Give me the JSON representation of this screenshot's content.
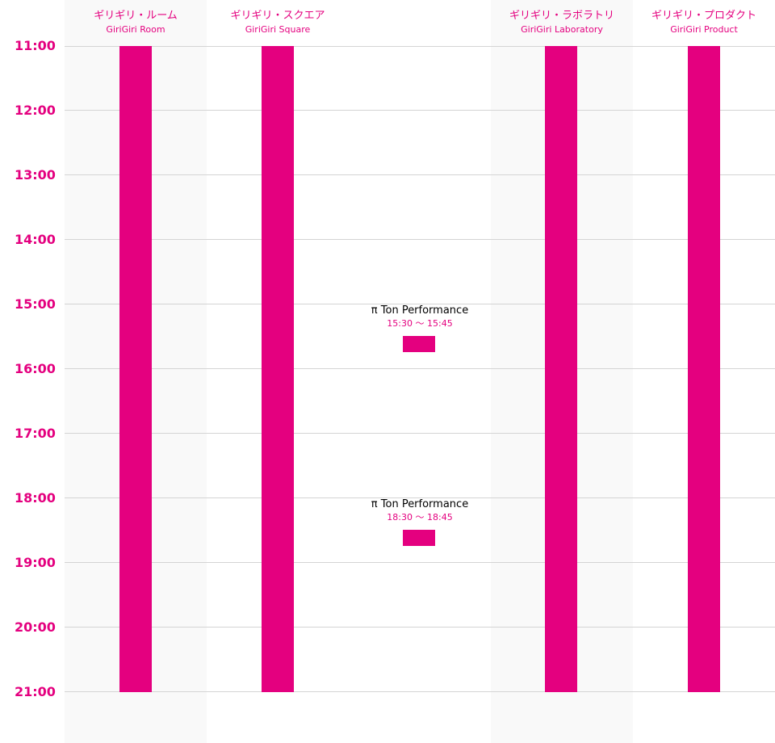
{
  "rooms": [
    {
      "jp": "ギリギリ・ルーム",
      "en": "GiriGiri Room"
    },
    {
      "jp": "ギリギリ・スクエア",
      "en": "GiriGiri Square"
    },
    {
      "jp": "",
      "en": ""
    },
    {
      "jp": "ギリギリ・ラボラトリ",
      "en": "GiriGiri Laboratory"
    },
    {
      "jp": "ギリギリ・プロダクト",
      "en": "GiriGiri Product"
    }
  ],
  "times": [
    "11:00",
    "12:00",
    "13:00",
    "14:00",
    "15:00",
    "16:00",
    "17:00",
    "18:00",
    "19:00",
    "20:00",
    "21:00"
  ],
  "events": [
    {
      "title": "π Ton Performance",
      "time": "15:30 〜 15:45",
      "start": "15:30",
      "end": "15:45"
    },
    {
      "title": "π Ton Performance",
      "time": "18:30 〜 18:45",
      "start": "18:30",
      "end": "18:45"
    }
  ],
  "colors": {
    "accent": "#e4007f",
    "column_bg": "#f9f9f9",
    "gridline": "#d4d4d4"
  }
}
